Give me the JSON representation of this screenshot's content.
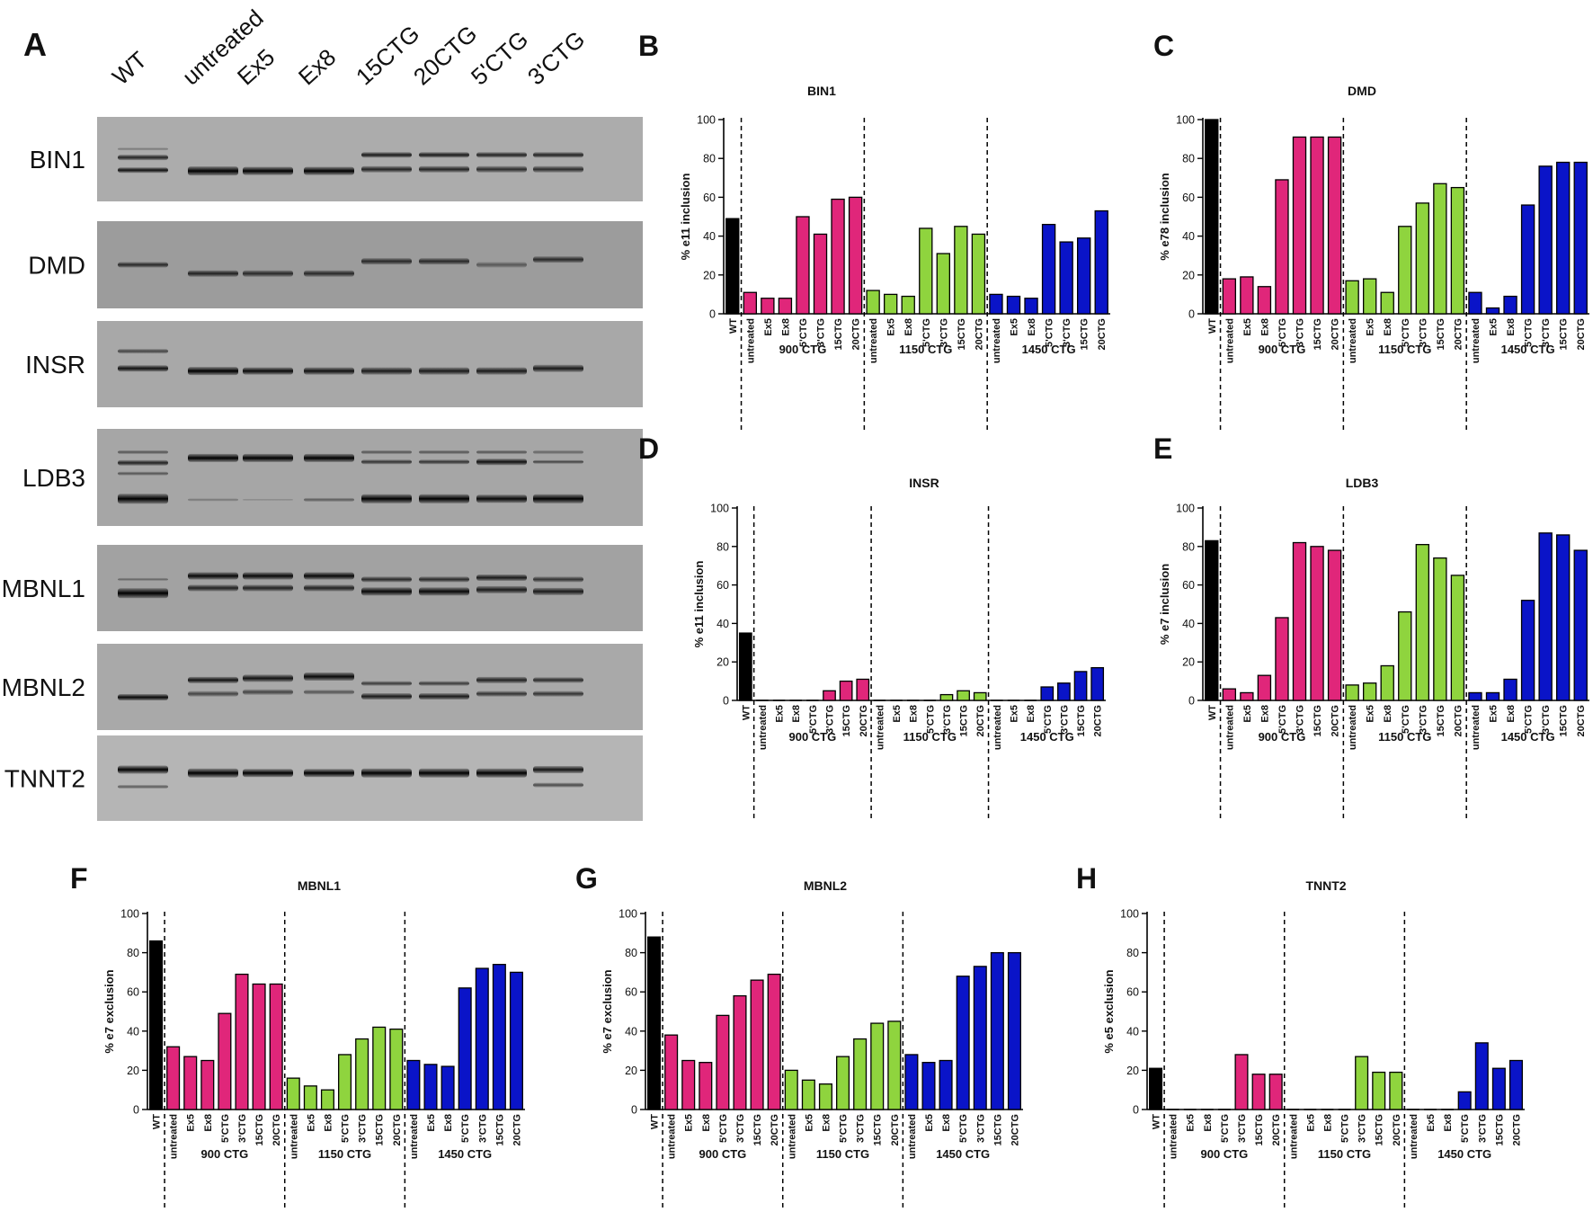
{
  "gel": {
    "panel_letter": "A",
    "lanes": [
      "WT",
      "untreated",
      "Ex5",
      "Ex8",
      "15CTG",
      "20CTG",
      "5'CTG",
      "3'CTG"
    ],
    "genes": [
      "BIN1",
      "DMD",
      "INSR",
      "LDB3",
      "MBNL1",
      "MBNL2",
      "TNNT2"
    ]
  },
  "colors": {
    "wt": "#000000",
    "g900": "#e0267a",
    "g1150": "#8fd43e",
    "g1450": "#0a14c8"
  },
  "chart_data": [
    {
      "type": "bar",
      "panel": "B",
      "title": "BIN1",
      "ylabel": "% e11 inclusion",
      "ylim": [
        0,
        100
      ],
      "yticks": [
        "0",
        "20",
        "40",
        "60",
        "80",
        "100"
      ],
      "wt_label": "WT",
      "wt_value": 49,
      "groups": [
        {
          "name": "900 CTG",
          "categories": [
            "untreated",
            "Ex5",
            "Ex8",
            "5'CTG",
            "3'CTG",
            "15CTG",
            "20CTG"
          ],
          "values": [
            11,
            8,
            8,
            50,
            41,
            59,
            60
          ]
        },
        {
          "name": "1150 CTG",
          "categories": [
            "untreated",
            "Ex5",
            "Ex8",
            "5'CTG",
            "3'CTG",
            "15CTG",
            "20CTG"
          ],
          "values": [
            12,
            10,
            9,
            44,
            31,
            45,
            41
          ]
        },
        {
          "name": "1450 CTG",
          "categories": [
            "untreated",
            "Ex5",
            "Ex8",
            "5'CTG",
            "3'CTG",
            "15CTG",
            "20CTG"
          ],
          "values": [
            10,
            9,
            8,
            46,
            37,
            39,
            53
          ]
        }
      ]
    },
    {
      "type": "bar",
      "panel": "C",
      "title": "DMD",
      "ylabel": "% e78 inclusion",
      "ylim": [
        0,
        100
      ],
      "yticks": [
        "0",
        "20",
        "40",
        "60",
        "80",
        "100"
      ],
      "wt_label": "WT",
      "wt_value": 100,
      "groups": [
        {
          "name": "900 CTG",
          "categories": [
            "untreated",
            "Ex5",
            "Ex8",
            "5'CTG",
            "3'CTG",
            "15CTG",
            "20CTG"
          ],
          "values": [
            18,
            19,
            14,
            69,
            91,
            91,
            91
          ]
        },
        {
          "name": "1150 CTG",
          "categories": [
            "untreated",
            "Ex5",
            "Ex8",
            "5'CTG",
            "3'CTG",
            "15CTG",
            "20CTG"
          ],
          "values": [
            17,
            18,
            11,
            45,
            57,
            67,
            65
          ]
        },
        {
          "name": "1450 CTG",
          "categories": [
            "untreated",
            "Ex5",
            "Ex8",
            "5'CTG",
            "3'CTG",
            "15CTG",
            "20CTG"
          ],
          "values": [
            11,
            3,
            9,
            56,
            76,
            78,
            78
          ]
        }
      ]
    },
    {
      "type": "bar",
      "panel": "D",
      "title": "INSR",
      "ylabel": "% e11 inclusion",
      "ylim": [
        0,
        100
      ],
      "yticks": [
        "0",
        "20",
        "40",
        "60",
        "80",
        "100"
      ],
      "wt_label": "WT",
      "wt_value": 35,
      "groups": [
        {
          "name": "900 CTG",
          "categories": [
            "untreated",
            "Ex5",
            "Ex8",
            "5'CTG",
            "3'CTG",
            "15CTG",
            "20CTG"
          ],
          "values": [
            0,
            0,
            0,
            0,
            5,
            10,
            11
          ]
        },
        {
          "name": "1150 CTG",
          "categories": [
            "untreated",
            "Ex5",
            "Ex8",
            "5'CTG",
            "3'CTG",
            "15CTG",
            "20CTG"
          ],
          "values": [
            0,
            0,
            0,
            0,
            3,
            5,
            4
          ]
        },
        {
          "name": "1450 CTG",
          "categories": [
            "untreated",
            "Ex5",
            "Ex8",
            "5'CTG",
            "3'CTG",
            "15CTG",
            "20CTG"
          ],
          "values": [
            0,
            0,
            0,
            7,
            9,
            15,
            17
          ]
        }
      ]
    },
    {
      "type": "bar",
      "panel": "E",
      "title": "LDB3",
      "ylabel": "% e7 inclusion",
      "ylim": [
        0,
        100
      ],
      "yticks": [
        "0",
        "20",
        "40",
        "60",
        "80",
        "100"
      ],
      "wt_label": "WT",
      "wt_value": 83,
      "groups": [
        {
          "name": "900 CTG",
          "categories": [
            "untreated",
            "Ex5",
            "Ex8",
            "5'CTG",
            "3'CTG",
            "15CTG",
            "20CTG"
          ],
          "values": [
            6,
            4,
            13,
            43,
            82,
            80,
            78
          ]
        },
        {
          "name": "1150 CTG",
          "categories": [
            "untreated",
            "Ex5",
            "Ex8",
            "5'CTG",
            "3'CTG",
            "15CTG",
            "20CTG"
          ],
          "values": [
            8,
            9,
            18,
            46,
            81,
            74,
            65
          ]
        },
        {
          "name": "1450 CTG",
          "categories": [
            "untreated",
            "Ex5",
            "Ex8",
            "5'CTG",
            "3'CTG",
            "15CTG",
            "20CTG"
          ],
          "values": [
            4,
            4,
            11,
            52,
            87,
            86,
            78
          ]
        }
      ]
    },
    {
      "type": "bar",
      "panel": "F",
      "title": "MBNL1",
      "ylabel": "% e7 exclusion",
      "ylim": [
        0,
        100
      ],
      "yticks": [
        "0",
        "20",
        "40",
        "60",
        "80",
        "100"
      ],
      "wt_label": "WT",
      "wt_value": 86,
      "groups": [
        {
          "name": "900 CTG",
          "categories": [
            "untreated",
            "Ex5",
            "Ex8",
            "5'CTG",
            "3'CTG",
            "15CTG",
            "20CTG"
          ],
          "values": [
            32,
            27,
            25,
            49,
            69,
            64,
            64
          ]
        },
        {
          "name": "1150 CTG",
          "categories": [
            "untreated",
            "Ex5",
            "Ex8",
            "5'CTG",
            "3'CTG",
            "15CTG",
            "20CTG"
          ],
          "values": [
            16,
            12,
            10,
            28,
            36,
            42,
            41
          ]
        },
        {
          "name": "1450 CTG",
          "categories": [
            "untreated",
            "Ex5",
            "Ex8",
            "5'CTG",
            "3'CTG",
            "15CTG",
            "20CTG"
          ],
          "values": [
            25,
            23,
            22,
            62,
            72,
            74,
            70
          ]
        }
      ]
    },
    {
      "type": "bar",
      "panel": "G",
      "title": "MBNL2",
      "ylabel": "% e7 exclusion",
      "ylim": [
        0,
        100
      ],
      "yticks": [
        "0",
        "20",
        "40",
        "60",
        "80",
        "100"
      ],
      "wt_label": "WT",
      "wt_value": 88,
      "groups": [
        {
          "name": "900 CTG",
          "categories": [
            "untreated",
            "Ex5",
            "Ex8",
            "5'CTG",
            "3'CTG",
            "15CTG",
            "20CTG"
          ],
          "values": [
            38,
            25,
            24,
            48,
            58,
            66,
            69
          ]
        },
        {
          "name": "1150 CTG",
          "categories": [
            "untreated",
            "Ex5",
            "Ex8",
            "5'CTG",
            "3'CTG",
            "15CTG",
            "20CTG"
          ],
          "values": [
            20,
            15,
            13,
            27,
            36,
            44,
            45
          ]
        },
        {
          "name": "1450 CTG",
          "categories": [
            "untreated",
            "Ex5",
            "Ex8",
            "5'CTG",
            "3'CTG",
            "15CTG",
            "20CTG"
          ],
          "values": [
            28,
            24,
            25,
            68,
            73,
            80,
            80
          ]
        }
      ]
    },
    {
      "type": "bar",
      "panel": "H",
      "title": "TNNT2",
      "ylabel": "% e5 exclusion",
      "ylim": [
        0,
        100
      ],
      "yticks": [
        "0",
        "20",
        "40",
        "60",
        "80",
        "100"
      ],
      "wt_label": "WT",
      "wt_value": 21,
      "groups": [
        {
          "name": "900 CTG",
          "categories": [
            "untreated",
            "Ex5",
            "Ex8",
            "5'CTG",
            "3'CTG",
            "15CTG",
            "20CTG"
          ],
          "values": [
            0,
            0,
            0,
            0,
            28,
            18,
            18
          ]
        },
        {
          "name": "1150 CTG",
          "categories": [
            "untreated",
            "Ex5",
            "Ex8",
            "5'CTG",
            "3'CTG",
            "15CTG",
            "20CTG"
          ],
          "values": [
            0,
            0,
            0,
            0,
            27,
            19,
            19
          ]
        },
        {
          "name": "1450 CTG",
          "categories": [
            "untreated",
            "Ex5",
            "Ex8",
            "5'CTG",
            "3'CTG",
            "15CTG",
            "20CTG"
          ],
          "values": [
            0,
            0,
            0,
            9,
            34,
            21,
            25
          ]
        }
      ]
    }
  ]
}
